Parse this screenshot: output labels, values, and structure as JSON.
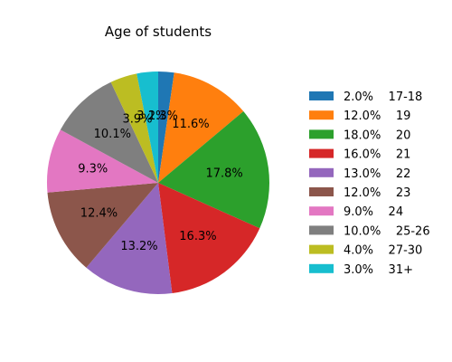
{
  "chart_data": {
    "type": "pie",
    "title": "Age of students",
    "start_angle_deg": 90,
    "direction": "clockwise",
    "legend_position": "right",
    "slices": [
      {
        "legend": "2.0%    17-18",
        "value": 2.3,
        "label": "2.3%",
        "color": "#1f77b4"
      },
      {
        "legend": "12.0%    19",
        "value": 11.6,
        "label": "11.6%",
        "color": "#ff7f0e"
      },
      {
        "legend": "18.0%    20",
        "value": 17.8,
        "label": "17.8%",
        "color": "#2ca02c"
      },
      {
        "legend": "16.0%    21",
        "value": 16.3,
        "label": "16.3%",
        "color": "#d62728"
      },
      {
        "legend": "13.0%    22",
        "value": 13.2,
        "label": "13.2%",
        "color": "#9467bd"
      },
      {
        "legend": "12.0%    23",
        "value": 12.4,
        "label": "12.4%",
        "color": "#8c564b"
      },
      {
        "legend": "9.0%    24",
        "value": 9.3,
        "label": "9.3%",
        "color": "#e377c2"
      },
      {
        "legend": "10.0%    25-26",
        "value": 10.1,
        "label": "10.1%",
        "color": "#7f7f7f"
      },
      {
        "legend": "4.0%    27-30",
        "value": 3.9,
        "label": "3.9%",
        "color": "#bcbd22"
      },
      {
        "legend": "3.0%    31+",
        "value": 3.1,
        "label": "3.1%",
        "color": "#17becf"
      }
    ]
  }
}
